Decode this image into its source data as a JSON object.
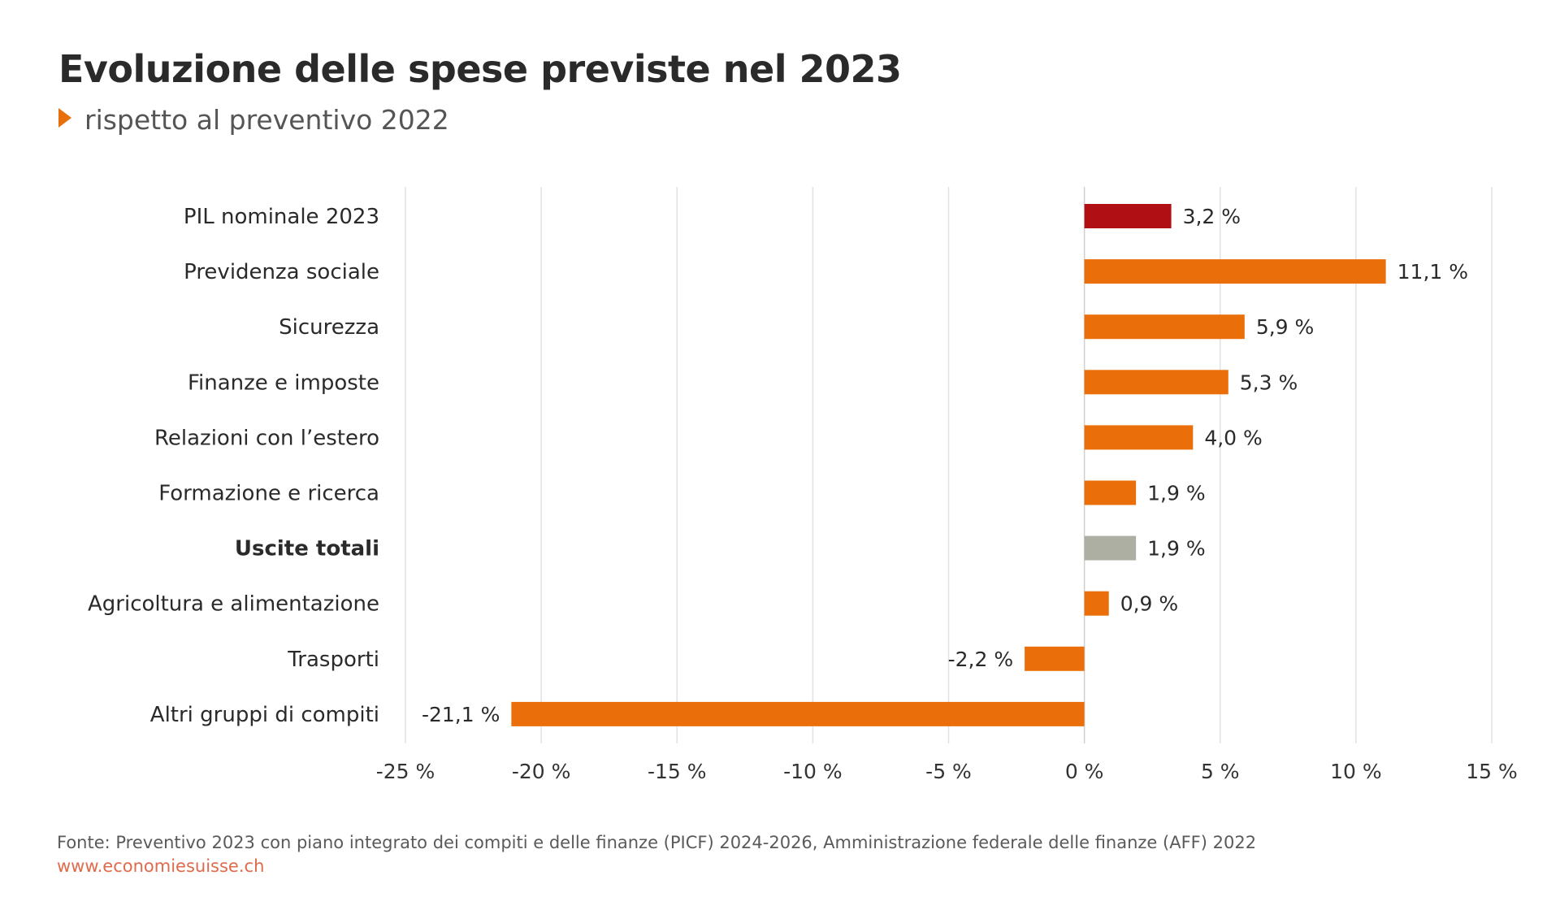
{
  "header": {
    "title": "Evoluzione delle spese previste nel 2023",
    "subtitle": "rispetto al preventivo 2022"
  },
  "footer": {
    "source": "Fonte: Preventivo 2023 con piano integrato dei compiti e delle finanze (PICF) 2024-2026, Amministrazione federale delle finanze (AFF) 2022",
    "url": "www.economiesuisse.ch"
  },
  "chart_data": {
    "type": "bar",
    "orientation": "horizontal",
    "title": "Evoluzione delle spese previste nel 2023",
    "subtitle": "rispetto al preventivo 2022",
    "categories": [
      "PIL nominale 2023",
      "Previdenza sociale",
      "Sicurezza",
      "Finanze e imposte",
      "Relazioni con l’estero",
      "Formazione e ricerca",
      "Uscite totali",
      "Agricoltura e alimentazione",
      "Trasporti",
      "Altri gruppi di compiti"
    ],
    "values": [
      3.2,
      11.1,
      5.9,
      5.3,
      4.0,
      1.9,
      1.9,
      0.9,
      -2.2,
      -21.1
    ],
    "value_labels": [
      "3,2 %",
      "11,1 %",
      "5,9 %",
      "5,3 %",
      "4,0 %",
      "1,9 %",
      "1,9 %",
      "0,9 %",
      "-2,2 %",
      "-21,1 %"
    ],
    "bar_colors": [
      "#b01013",
      "#ea6f0a",
      "#ea6f0a",
      "#ea6f0a",
      "#ea6f0a",
      "#ea6f0a",
      "#aeafa3",
      "#ea6f0a",
      "#ea6f0a",
      "#ea6f0a"
    ],
    "bold_categories": [
      "Uscite totali"
    ],
    "xlim": [
      -25,
      15
    ],
    "xticks": [
      -25,
      -20,
      -15,
      -10,
      -5,
      0,
      5,
      10,
      15
    ],
    "xtick_labels": [
      "-25 %",
      "-20 %",
      "-15 %",
      "-10 %",
      "-5 %",
      "0 %",
      "5 %",
      "10 %",
      "15 %"
    ],
    "grid": true,
    "legend": "none"
  }
}
